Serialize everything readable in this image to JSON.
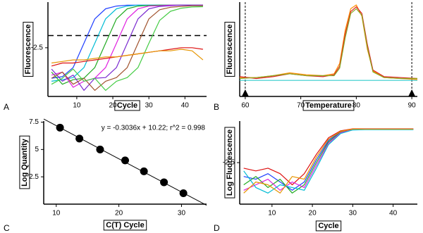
{
  "chart_data": [
    {
      "type": "line",
      "panel": "A",
      "xlabel": "Cycle",
      "ylabel": "Fluorescence",
      "x": [
        3,
        6,
        9,
        12,
        15,
        18,
        21,
        24,
        27,
        30,
        33,
        36,
        39,
        42,
        45
      ],
      "xlim": [
        2,
        46
      ],
      "xticks": [
        10,
        20,
        30,
        40
      ],
      "ylim": [
        -4.1,
        -1
      ],
      "yticks": [
        -2.5
      ],
      "threshold": -2.1,
      "series": [
        {
          "color": "#1f3fff",
          "values": [
            -3.5,
            -3.45,
            -3.15,
            -2.35,
            -1.55,
            -1.22,
            -1.13,
            -1.1,
            -1.1,
            -1.1,
            -1.1,
            -1.1,
            -1.1,
            -1.1,
            -1.1
          ]
        },
        {
          "color": "#00bcd4",
          "values": [
            -3.6,
            -3.55,
            -3.48,
            -3.15,
            -2.35,
            -1.55,
            -1.22,
            -1.13,
            -1.1,
            -1.1,
            -1.1,
            -1.1,
            -1.1,
            -1.1,
            -1.1
          ]
        },
        {
          "color": "#22aa22",
          "values": [
            -3.3,
            -3.7,
            -3.55,
            -3.5,
            -3.15,
            -2.35,
            -1.55,
            -1.22,
            -1.13,
            -1.11,
            -1.1,
            -1.1,
            -1.1,
            -1.1,
            -1.1
          ]
        },
        {
          "color": "#e020e0",
          "values": [
            -3.4,
            -3.3,
            -3.8,
            -3.6,
            -3.5,
            -3.15,
            -2.35,
            -1.55,
            -1.22,
            -1.13,
            -1.12,
            -1.1,
            -1.1,
            -1.1,
            -1.1
          ]
        },
        {
          "color": "#7a2ad0",
          "values": [
            -3.2,
            -3.6,
            -3.4,
            -3.9,
            -3.5,
            -3.48,
            -3.15,
            -2.35,
            -1.55,
            -1.22,
            -1.14,
            -1.12,
            -1.1,
            -1.1,
            -1.1
          ]
        },
        {
          "color": "#a0522d",
          "values": [
            -3.5,
            -3.3,
            -3.7,
            -3.5,
            -3.9,
            -3.6,
            -3.48,
            -3.15,
            -2.35,
            -1.55,
            -1.25,
            -1.17,
            -1.14,
            -1.12,
            -1.12
          ]
        },
        {
          "color": "#44cc44",
          "values": [
            -3.7,
            -3.5,
            -3.2,
            -3.6,
            -3.5,
            -3.9,
            -3.6,
            -3.48,
            -3.15,
            -2.35,
            -1.6,
            -1.3,
            -1.2,
            -1.16,
            -1.15
          ]
        },
        {
          "color": "#dd1111",
          "values": [
            -3.1,
            -3.0,
            -3.0,
            -2.95,
            -2.9,
            -2.85,
            -2.8,
            -2.75,
            -2.7,
            -2.65,
            -2.6,
            -2.55,
            -2.5,
            -2.5,
            -2.55
          ]
        },
        {
          "color": "#e69500",
          "values": [
            -3.0,
            -2.95,
            -2.9,
            -2.9,
            -2.85,
            -2.8,
            -2.8,
            -2.75,
            -2.7,
            -2.65,
            -2.6,
            -2.6,
            -2.55,
            -2.6,
            -2.9
          ]
        }
      ]
    },
    {
      "type": "line",
      "panel": "B",
      "xlabel": "Temperature",
      "ylabel": "Fluorescence",
      "x": [
        59,
        62,
        65,
        68,
        71,
        74,
        76,
        77,
        78,
        79,
        80,
        81,
        82,
        83,
        85,
        88,
        91
      ],
      "xlim": [
        59,
        91
      ],
      "xticks": [
        60,
        70,
        80,
        90
      ],
      "ylim": [
        0,
        1
      ],
      "range_lines": [
        60,
        90
      ],
      "series": [
        {
          "color": "#ff8c00",
          "values": [
            0.2,
            0.2,
            0.22,
            0.25,
            0.23,
            0.22,
            0.24,
            0.35,
            0.7,
            0.93,
            0.97,
            0.85,
            0.5,
            0.27,
            0.2,
            0.19,
            0.18
          ]
        },
        {
          "color": "#dd2222",
          "values": [
            0.21,
            0.19,
            0.21,
            0.24,
            0.22,
            0.21,
            0.23,
            0.32,
            0.66,
            0.9,
            0.95,
            0.88,
            0.55,
            0.28,
            0.21,
            0.2,
            0.19
          ]
        },
        {
          "color": "#88aa22",
          "values": [
            0.19,
            0.2,
            0.22,
            0.24,
            0.22,
            0.22,
            0.22,
            0.3,
            0.62,
            0.88,
            0.93,
            0.86,
            0.52,
            0.26,
            0.2,
            0.19,
            0.19
          ]
        },
        {
          "color": "#33cccc",
          "values": [
            0.17,
            0.17,
            0.17,
            0.17,
            0.17,
            0.17,
            0.17,
            0.17,
            0.17,
            0.17,
            0.17,
            0.17,
            0.17,
            0.17,
            0.17,
            0.17,
            0.17
          ]
        }
      ]
    },
    {
      "type": "scatter",
      "panel": "C",
      "xlabel": "C(T) Cycle",
      "ylabel": "Log Quantity",
      "annotation": "y = -0.3036x + 10.22; r^2 = 0.998",
      "fit": {
        "slope": -0.3036,
        "intercept": 10.22
      },
      "x": [
        10.6,
        13.7,
        17,
        21,
        24,
        27.2,
        30.3
      ],
      "values": [
        7,
        6,
        5,
        4,
        3,
        2,
        1
      ],
      "xlim": [
        8,
        34
      ],
      "xticks": [
        10,
        20,
        30
      ],
      "ylim": [
        0,
        7.6
      ],
      "yticks": [
        2.5,
        5,
        7.5
      ],
      "color": "#000000"
    },
    {
      "type": "line",
      "panel": "D",
      "xlabel": "Cycle",
      "ylabel": "Log Fluorescence",
      "x": [
        3,
        6,
        9,
        12,
        15,
        18,
        21,
        24,
        27,
        30,
        33,
        36,
        39,
        42,
        45
      ],
      "xlim": [
        2,
        46
      ],
      "xticks": [
        10,
        20,
        30,
        40
      ],
      "ylim": [
        -4,
        -1
      ],
      "yticks": [
        -2.5
      ],
      "series": [
        {
          "color": "#dd1111",
          "values": [
            -2.7,
            -2.8,
            -2.7,
            -2.9,
            -3.3,
            -2.9,
            -2.2,
            -1.6,
            -1.35,
            -1.28,
            -1.28,
            -1.28,
            -1.28,
            -1.28,
            -1.28
          ]
        },
        {
          "color": "#1f3fff",
          "values": [
            -3.0,
            -3.1,
            -2.9,
            -3.2,
            -3.5,
            -3.2,
            -2.4,
            -1.7,
            -1.38,
            -1.3,
            -1.29,
            -1.29,
            -1.29,
            -1.29,
            -1.29
          ]
        },
        {
          "color": "#22aa22",
          "values": [
            -3.3,
            -3.0,
            -3.4,
            -3.1,
            -3.6,
            -3.3,
            -2.5,
            -1.75,
            -1.4,
            -1.3,
            -1.3,
            -1.3,
            -1.3,
            -1.3,
            -1.3
          ]
        },
        {
          "color": "#e020e0",
          "values": [
            -3.5,
            -3.3,
            -3.1,
            -3.5,
            -3.2,
            -3.4,
            -2.6,
            -1.8,
            -1.42,
            -1.31,
            -1.3,
            -1.3,
            -1.3,
            -1.3,
            -1.3
          ]
        },
        {
          "color": "#00bcd4",
          "values": [
            -2.8,
            -3.4,
            -3.6,
            -3.3,
            -3.4,
            -3.5,
            -2.7,
            -1.85,
            -1.45,
            -1.32,
            -1.31,
            -1.31,
            -1.31,
            -1.31,
            -1.31
          ]
        },
        {
          "color": "#e69500",
          "values": [
            -3.6,
            -3.2,
            -3.3,
            -3.6,
            -3.0,
            -3.1,
            -2.3,
            -1.65,
            -1.37,
            -1.29,
            -1.29,
            -1.29,
            -1.29,
            -1.29,
            -1.29
          ]
        }
      ]
    }
  ]
}
